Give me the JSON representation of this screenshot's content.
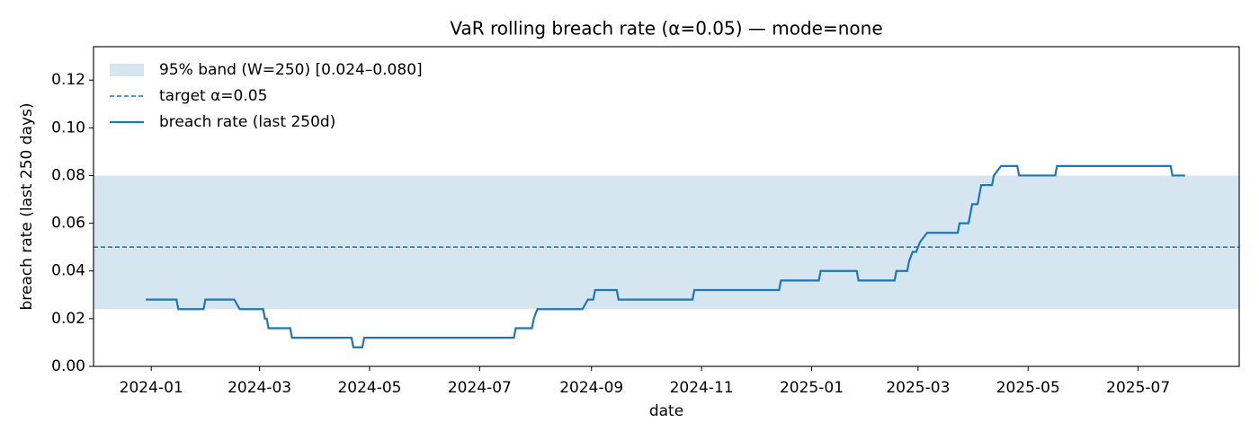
{
  "chart_data": {
    "type": "line",
    "title": "VaR rolling breach rate (α=0.05) — mode=none",
    "x_label": "date",
    "y_label": "breach rate (last 250 days)",
    "xlim": [
      "2023-11-30",
      "2025-08-26"
    ],
    "xticks": [
      "2024-01",
      "2024-03",
      "2024-05",
      "2024-07",
      "2024-09",
      "2024-11",
      "2025-01",
      "2025-03",
      "2025-05",
      "2025-07"
    ],
    "ylim": [
      0,
      0.134
    ],
    "yticks": [
      {
        "value": 0,
        "label": "0.00"
      },
      {
        "value": 0.02,
        "label": "0.02"
      },
      {
        "value": 0.04,
        "label": "0.04"
      },
      {
        "value": 0.06,
        "label": "0.06"
      },
      {
        "value": 0.08,
        "label": "0.08"
      },
      {
        "value": 0.1,
        "label": "0.10"
      },
      {
        "value": 0.12,
        "label": "0.12"
      }
    ],
    "legend": "upper left",
    "band": {
      "name": "95% band (W=250) [0.024–0.080]",
      "lower": 0.024,
      "upper": 0.08,
      "color": "#d6e6f1"
    },
    "target": {
      "name": "target α=0.05",
      "value": 0.05,
      "color": "#1f77b4"
    },
    "x": [
      "2023-12-29",
      "2024-01-15",
      "2024-01-16",
      "2024-01-30",
      "2024-01-31",
      "2024-02-16",
      "2024-02-19",
      "2024-03-03",
      "2024-03-04",
      "2024-03-05",
      "2024-03-06",
      "2024-03-18",
      "2024-03-19",
      "2024-04-21",
      "2024-04-22",
      "2024-04-27",
      "2024-04-28",
      "2024-07-20",
      "2024-07-21",
      "2024-07-30",
      "2024-07-31",
      "2024-08-02",
      "2024-08-27",
      "2024-08-30",
      "2024-09-02",
      "2024-09-03",
      "2024-09-15",
      "2024-09-16",
      "2024-10-27",
      "2024-10-28",
      "2024-12-14",
      "2024-12-15",
      "2025-01-05",
      "2025-01-06",
      "2025-01-26",
      "2025-01-27",
      "2025-02-16",
      "2025-02-17",
      "2025-02-23",
      "2025-02-24",
      "2025-02-26",
      "2025-02-28",
      "2025-03-02",
      "2025-03-06",
      "2025-03-23",
      "2025-03-24",
      "2025-03-29",
      "2025-03-31",
      "2025-04-03",
      "2025-04-04",
      "2025-04-05",
      "2025-04-11",
      "2025-04-12",
      "2025-04-16",
      "2025-04-25",
      "2025-04-26",
      "2025-05-16",
      "2025-05-17",
      "2025-07-19",
      "2025-07-20",
      "2025-07-27"
    ],
    "series": [
      {
        "name": "breach rate (last 250d)",
        "color": "#1f77b4",
        "values": [
          0.028,
          0.028,
          0.024,
          0.024,
          0.028,
          0.028,
          0.024,
          0.024,
          0.02,
          0.02,
          0.016,
          0.016,
          0.012,
          0.012,
          0.008,
          0.008,
          0.012,
          0.012,
          0.016,
          0.016,
          0.02,
          0.024,
          0.024,
          0.028,
          0.028,
          0.032,
          0.032,
          0.028,
          0.028,
          0.032,
          0.032,
          0.036,
          0.036,
          0.04,
          0.04,
          0.036,
          0.036,
          0.04,
          0.04,
          0.044,
          0.048,
          0.048,
          0.052,
          0.056,
          0.056,
          0.06,
          0.06,
          0.068,
          0.068,
          0.072,
          0.076,
          0.076,
          0.08,
          0.084,
          0.084,
          0.08,
          0.08,
          0.084,
          0.084,
          0.08,
          0.08
        ]
      }
    ]
  }
}
